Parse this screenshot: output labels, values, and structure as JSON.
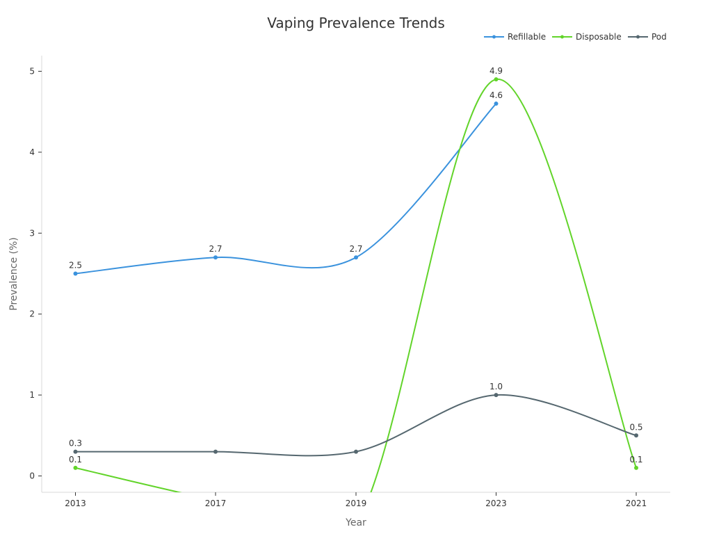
{
  "chart_data": {
    "type": "line",
    "title": "Vaping Prevalence Trends",
    "xlabel": "Year",
    "ylabel": "Prevalence (%)",
    "categories": [
      "2013",
      "2017",
      "2019",
      "2023",
      "2021"
    ],
    "ylim": [
      -0.2,
      5.2
    ],
    "yticks": [
      0,
      1,
      2,
      3,
      4,
      5
    ],
    "grid": false,
    "legend_position": "top-right",
    "series": [
      {
        "name": "Refillable",
        "color": "#3a92dd",
        "values": [
          2.5,
          2.7,
          2.7,
          4.6,
          null
        ],
        "labels": [
          "2.5",
          "2.7",
          "2.7",
          "4.6",
          ""
        ]
      },
      {
        "name": "Disposable",
        "color": "#62d42a",
        "values": [
          0.1,
          -0.3,
          -0.6,
          4.9,
          0.1
        ],
        "labels": [
          "0.1",
          "",
          "",
          "4.9",
          "0.1"
        ]
      },
      {
        "name": "Pod",
        "color": "#55676f",
        "values": [
          0.3,
          0.3,
          0.3,
          1.0,
          0.5
        ],
        "labels": [
          "0.3",
          "",
          "",
          "1.0",
          "0.5"
        ]
      }
    ]
  }
}
